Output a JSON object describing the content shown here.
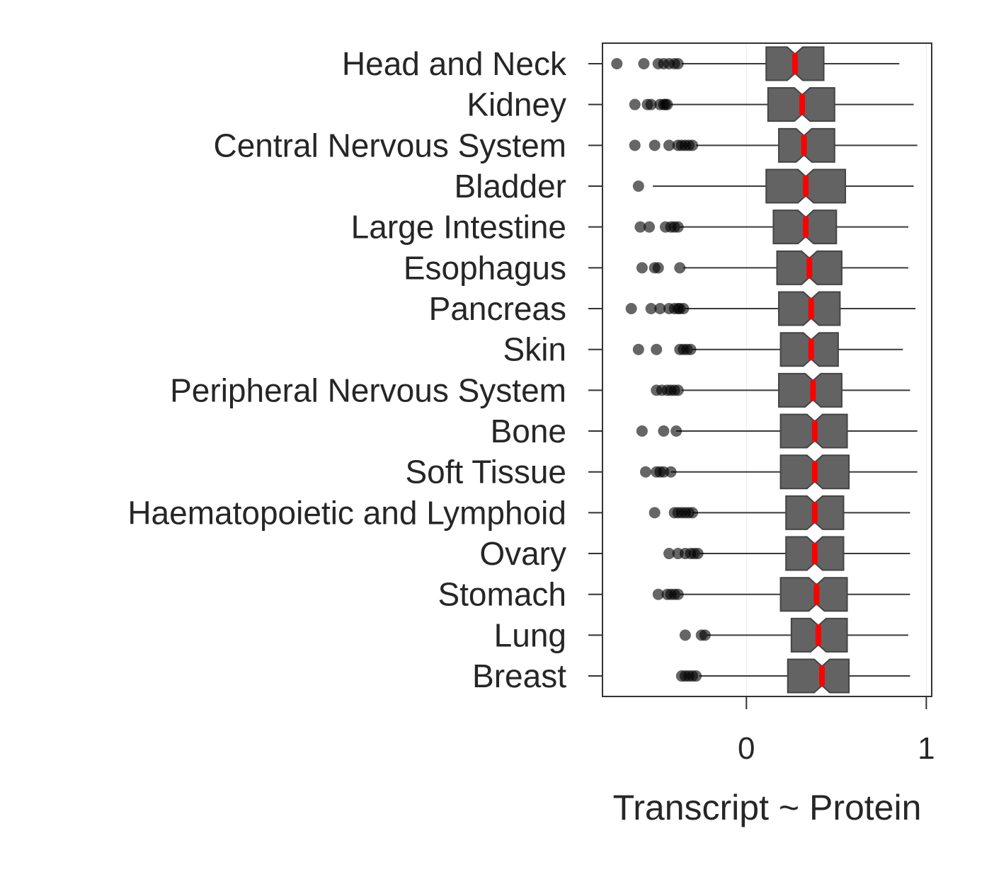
{
  "chart_data": {
    "type": "box",
    "orientation": "horizontal",
    "title": "",
    "xlabel": "Transcript ~ Protein",
    "ylabel": "",
    "xlim": [
      -0.8,
      1.03
    ],
    "xticks": [
      0,
      1
    ],
    "grid": "vertical lines at ticks",
    "legend": "none",
    "box_color": "#636363",
    "median_color": "#ff0000",
    "outlier_color": "#000000",
    "categories": [
      "Head and Neck",
      "Kidney",
      "Central Nervous System",
      "Bladder",
      "Large Intestine",
      "Esophagus",
      "Pancreas",
      "Skin",
      "Peripheral Nervous System",
      "Bone",
      "Soft Tissue",
      "Haematopoietic and Lymphoid",
      "Ovary",
      "Stomach",
      "Lung",
      "Breast"
    ],
    "boxes": [
      {
        "category": "Head and Neck",
        "whislo": -0.36,
        "q1": 0.11,
        "med": 0.27,
        "q3": 0.43,
        "whishi": 0.85,
        "fliers": [
          -0.72,
          -0.57,
          -0.49,
          -0.46,
          -0.43,
          -0.4,
          -0.38
        ]
      },
      {
        "category": "Kidney",
        "whislo": -0.42,
        "q1": 0.12,
        "med": 0.31,
        "q3": 0.49,
        "whishi": 0.93,
        "fliers": [
          -0.62,
          -0.55,
          -0.53,
          -0.48,
          -0.46,
          -0.45,
          -0.44
        ]
      },
      {
        "category": "Central Nervous System",
        "whislo": -0.28,
        "q1": 0.18,
        "med": 0.32,
        "q3": 0.49,
        "whishi": 0.95,
        "fliers": [
          -0.62,
          -0.51,
          -0.43,
          -0.38,
          -0.36,
          -0.34,
          -0.32,
          -0.3
        ]
      },
      {
        "category": "Bladder",
        "whislo": -0.52,
        "q1": 0.11,
        "med": 0.33,
        "q3": 0.55,
        "whishi": 0.93,
        "fliers": [
          -0.6
        ]
      },
      {
        "category": "Large Intestine",
        "whislo": -0.37,
        "q1": 0.15,
        "med": 0.33,
        "q3": 0.5,
        "whishi": 0.9,
        "fliers": [
          -0.59,
          -0.54,
          -0.45,
          -0.42,
          -0.4,
          -0.38
        ]
      },
      {
        "category": "Esophagus",
        "whislo": -0.35,
        "q1": 0.17,
        "med": 0.35,
        "q3": 0.53,
        "whishi": 0.9,
        "fliers": [
          -0.58,
          -0.51,
          -0.49,
          -0.37
        ]
      },
      {
        "category": "Pancreas",
        "whislo": -0.34,
        "q1": 0.18,
        "med": 0.36,
        "q3": 0.52,
        "whishi": 0.94,
        "fliers": [
          -0.64,
          -0.53,
          -0.48,
          -0.43,
          -0.4,
          -0.38,
          -0.37,
          -0.35
        ]
      },
      {
        "category": "Skin",
        "whislo": -0.3,
        "q1": 0.19,
        "med": 0.36,
        "q3": 0.51,
        "whishi": 0.87,
        "fliers": [
          -0.6,
          -0.5,
          -0.37,
          -0.35,
          -0.33,
          -0.31
        ]
      },
      {
        "category": "Peripheral Nervous System",
        "whislo": -0.36,
        "q1": 0.18,
        "med": 0.37,
        "q3": 0.53,
        "whishi": 0.91,
        "fliers": [
          -0.5,
          -0.47,
          -0.44,
          -0.42,
          -0.4,
          -0.38
        ]
      },
      {
        "category": "Bone",
        "whislo": -0.39,
        "q1": 0.19,
        "med": 0.38,
        "q3": 0.56,
        "whishi": 0.95,
        "fliers": [
          -0.58,
          -0.46,
          -0.39
        ]
      },
      {
        "category": "Soft Tissue",
        "whislo": -0.42,
        "q1": 0.19,
        "med": 0.38,
        "q3": 0.57,
        "whishi": 0.95,
        "fliers": [
          -0.56,
          -0.5,
          -0.48,
          -0.46,
          -0.42
        ]
      },
      {
        "category": "Haematopoietic and Lymphoid",
        "whislo": -0.3,
        "q1": 0.22,
        "med": 0.38,
        "q3": 0.54,
        "whishi": 0.91,
        "fliers": [
          -0.51,
          -0.4,
          -0.38,
          -0.36,
          -0.34,
          -0.32,
          -0.3
        ]
      },
      {
        "category": "Ovary",
        "whislo": -0.26,
        "q1": 0.22,
        "med": 0.38,
        "q3": 0.54,
        "whishi": 0.91,
        "fliers": [
          -0.43,
          -0.38,
          -0.34,
          -0.31,
          -0.29,
          -0.27
        ]
      },
      {
        "category": "Stomach",
        "whislo": -0.37,
        "q1": 0.19,
        "med": 0.39,
        "q3": 0.56,
        "whishi": 0.91,
        "fliers": [
          -0.49,
          -0.44,
          -0.42,
          -0.4,
          -0.38
        ]
      },
      {
        "category": "Lung",
        "whislo": -0.22,
        "q1": 0.25,
        "med": 0.4,
        "q3": 0.56,
        "whishi": 0.9,
        "fliers": [
          -0.34,
          -0.25,
          -0.23
        ]
      },
      {
        "category": "Breast",
        "whislo": -0.26,
        "q1": 0.23,
        "med": 0.42,
        "q3": 0.57,
        "whishi": 0.91,
        "fliers": [
          -0.36,
          -0.34,
          -0.32,
          -0.3,
          -0.28
        ]
      }
    ]
  }
}
